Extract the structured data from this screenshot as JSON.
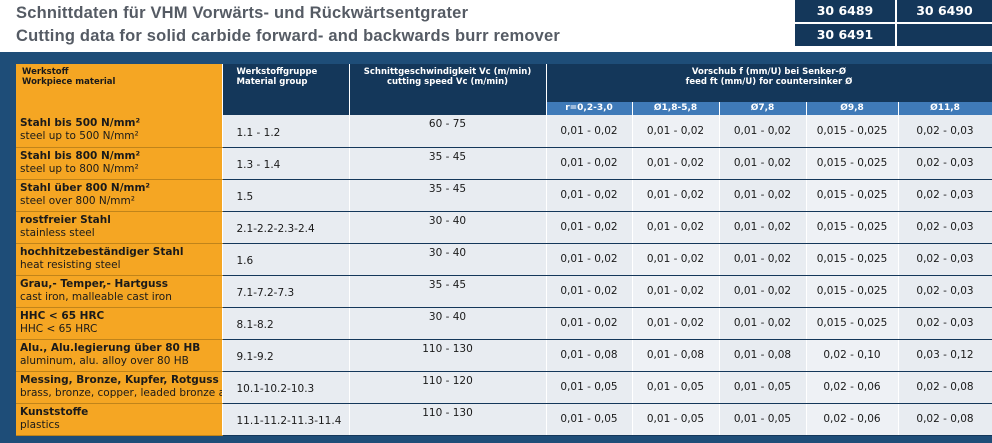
{
  "title": {
    "de": "Schnittdaten für VHM Vorwärts- und Rückwärtsentgrater",
    "en": "Cutting data for solid carbide forward- and backwards burr remover"
  },
  "articles": [
    "30 6489",
    "30 6490",
    "30 6491",
    ""
  ],
  "colors": {
    "orange": "#f5a623",
    "navy": "#14375a",
    "subheader": "#3f7ab8",
    "cell": "#e8ecf1"
  },
  "header": {
    "material_de": "Werkstoff",
    "material_en": "Workpiece material",
    "group_de": "Werkstoffgruppe",
    "group_en": "Material group",
    "speed_de": "Schnittgeschwindigkeit Vc (m/min)",
    "speed_en": "cutting speed Vc (m/min)",
    "feed_de": "Vorschub f (mm/U) bei Senker-Ø",
    "feed_en": "feed ft (mm/U) for countersinker Ø",
    "feed_cols": [
      "r=0,2-3,0",
      "Ø1,8-5,8",
      "Ø7,8",
      "Ø9,8",
      "Ø11,8"
    ]
  },
  "rows": [
    {
      "de": "Stahl bis 500 N/mm²",
      "en": "steel up to 500 N/mm²",
      "group": "1.1 - 1.2",
      "speed": "60 - 75",
      "feeds": [
        "0,01 - 0,02",
        "0,01 - 0,02",
        "0,01 - 0,02",
        "0,015 - 0,025",
        "0,02 - 0,03"
      ]
    },
    {
      "de": "Stahl bis 800 N/mm²",
      "en": "steel up to 800 N/mm²",
      "group": "1.3 - 1.4",
      "speed": "35 - 45",
      "feeds": [
        "0,01 - 0,02",
        "0,01 - 0,02",
        "0,01 - 0,02",
        "0,015 - 0,025",
        "0,02 - 0,03"
      ]
    },
    {
      "de": "Stahl über 800 N/mm²",
      "en": "steel over 800 N/mm²",
      "group": "1.5",
      "speed": "35 - 45",
      "feeds": [
        "0,01 - 0,02",
        "0,01 - 0,02",
        "0,01 - 0,02",
        "0,015 - 0,025",
        "0,02 - 0,03"
      ]
    },
    {
      "de": "rostfreier Stahl",
      "en": "stainless steel",
      "group": "2.1-2.2-2.3-2.4",
      "speed": "30 - 40",
      "feeds": [
        "0,01 - 0,02",
        "0,01 - 0,02",
        "0,01 - 0,02",
        "0,015 - 0,025",
        "0,02 - 0,03"
      ]
    },
    {
      "de": "hochhitzebeständiger Stahl",
      "en": "heat resisting steel",
      "group": "1.6",
      "speed": "30 - 40",
      "feeds": [
        "0,01 - 0,02",
        "0,01 - 0,02",
        "0,01 - 0,02",
        "0,015 - 0,025",
        "0,02 - 0,03"
      ]
    },
    {
      "de": "Grau,- Temper,- Hartguss",
      "en": "cast iron, malleable cast iron",
      "group": "7.1-7.2-7.3",
      "speed": "35 - 45",
      "feeds": [
        "0,01 - 0,02",
        "0,01 - 0,02",
        "0,01 - 0,02",
        "0,015 - 0,025",
        "0,02 - 0,03"
      ]
    },
    {
      "de": "HHC < 65 HRC",
      "en": "HHC < 65 HRC",
      "group": "8.1-8.2",
      "speed": "30 - 40",
      "feeds": [
        "0,01 - 0,02",
        "0,01 - 0,02",
        "0,01 - 0,02",
        "0,015 - 0,025",
        "0,02 - 0,03"
      ]
    },
    {
      "de": "Alu., Alu.legierung über 80 HB",
      "en": "aluminum, alu. alloy over 80 HB",
      "group": "9.1-9.2",
      "speed": "110 - 130",
      "feeds": [
        "0,01 - 0,08",
        "0,01 - 0,08",
        "0,01 - 0,08",
        "0,02 - 0,10",
        "0,03 - 0,12"
      ]
    },
    {
      "de": "Messing, Bronze, Kupfer, Rotguss",
      "en": "brass, bronze, copper, leaded bronze all",
      "group": "10.1-10.2-10.3",
      "speed": "110 - 120",
      "feeds": [
        "0,01 - 0,05",
        "0,01 - 0,05",
        "0,01 - 0,05",
        "0,02 - 0,06",
        "0,02 - 0,08"
      ]
    },
    {
      "de": "Kunststoffe",
      "en": "plastics",
      "group": "11.1-11.2-11.3-11.4",
      "speed": "110 - 130",
      "feeds": [
        "0,01 - 0,05",
        "0,01 - 0,05",
        "0,01 - 0,05",
        "0,02 - 0,06",
        "0,02 - 0,08"
      ]
    }
  ]
}
